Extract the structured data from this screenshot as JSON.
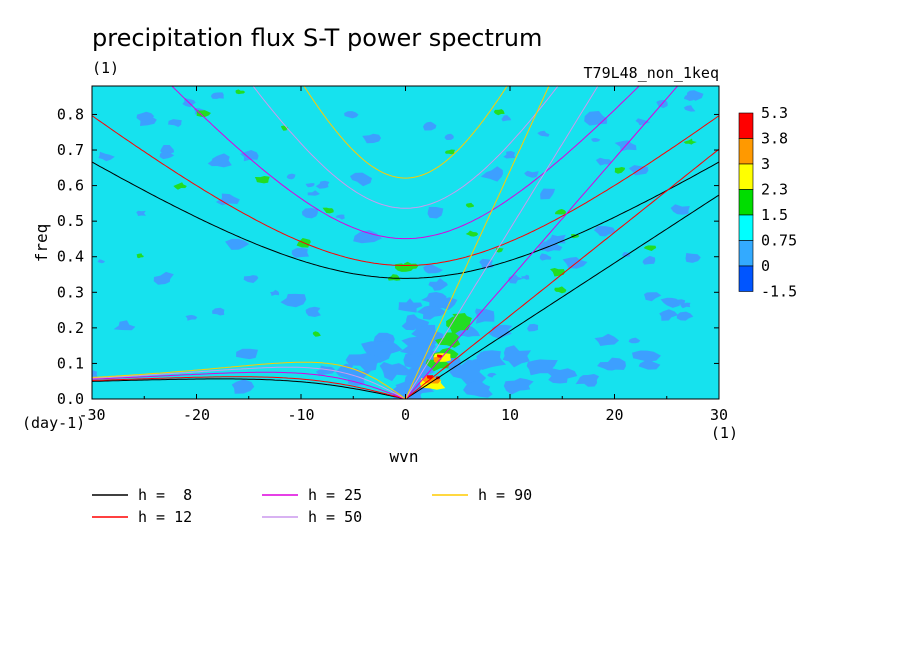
{
  "chart_data": {
    "type": "heatmap",
    "title": "precipitation flux S-T power spectrum",
    "subtitle_left": "(1)",
    "subtitle_right": "T79L48_non_1keq",
    "xlabel": "wvn",
    "xunit": "(1)",
    "ylabel": "freq",
    "yunit": "(day-1)",
    "xlim": [
      -30,
      30
    ],
    "ylim": [
      0.0,
      0.88
    ],
    "xticks": [
      -30,
      -20,
      -10,
      0,
      10,
      20,
      30
    ],
    "yticks": [
      0.0,
      0.1,
      0.2,
      0.3,
      0.4,
      0.5,
      0.6,
      0.7,
      0.8
    ],
    "xtick_labels": [
      "-30",
      "-20",
      "-10",
      "0",
      "10",
      "20",
      "30"
    ],
    "ytick_labels": [
      "0.0",
      "0.1",
      "0.2",
      "0.3",
      "0.4",
      "0.5",
      "0.6",
      "0.7",
      "0.8"
    ],
    "colorbar": {
      "labels": [
        "5.3",
        "3.8",
        "3",
        "2.3",
        "1.5",
        "0.75",
        "0",
        "-1.5"
      ],
      "colors": [
        "#ff0000",
        "#ff9900",
        "#ffff00",
        "#00dd00",
        "#00ffff",
        "#33aaff",
        "#0055ff"
      ]
    },
    "field_colors": {
      "background": "#16e2ee",
      "low": "#3d9fff",
      "mid": "#22dd22",
      "high": "#ffff00",
      "higher": "#ff9900",
      "peak": "#ff0000"
    },
    "dispersion_curves": [
      {
        "name": "h =  8",
        "h": 8,
        "color": "#000000"
      },
      {
        "name": "h = 12",
        "h": 12,
        "color": "#ff0000"
      },
      {
        "name": "h = 25",
        "h": 25,
        "color": "#dd00dd"
      },
      {
        "name": "h = 50",
        "h": 50,
        "color": "#cc99ee"
      },
      {
        "name": "h = 90",
        "h": 90,
        "color": "#ffcc00"
      }
    ]
  }
}
